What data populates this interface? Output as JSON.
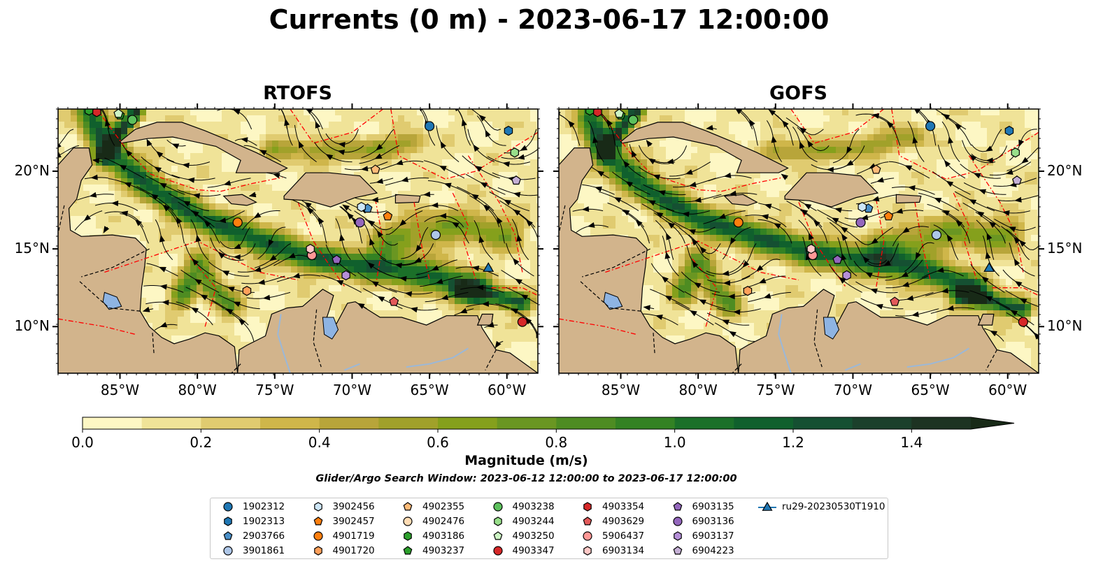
{
  "title": "Currents (0 m) - 2023-06-17 12:00:00",
  "panels": [
    {
      "title": "RTOFS"
    },
    {
      "title": "GOFS"
    }
  ],
  "axes": {
    "lon_ticks": [
      "85°W",
      "80°W",
      "75°W",
      "70°W",
      "65°W",
      "60°W"
    ],
    "lon_values": [
      -85,
      -80,
      -75,
      -70,
      -65,
      -60
    ],
    "lat_ticks": [
      "20°N",
      "15°N",
      "10°N"
    ],
    "lat_values": [
      20,
      15,
      10
    ],
    "lon_range": [
      -89,
      -58
    ],
    "lat_range": [
      7,
      24
    ]
  },
  "colorbar": {
    "label": "Magnitude (m/s)",
    "ticks": [
      "0.0",
      "0.2",
      "0.4",
      "0.6",
      "0.8",
      "1.0",
      "1.2",
      "1.4"
    ],
    "tick_values": [
      0,
      0.2,
      0.4,
      0.6,
      0.8,
      1.0,
      1.2,
      1.4
    ],
    "range": [
      0,
      1.5
    ],
    "extend": "max",
    "colors": [
      "#fdf7c4",
      "#f0e398",
      "#e0cb70",
      "#cfb64a",
      "#b8a53a",
      "#a1a12a",
      "#85a01c",
      "#6a9622",
      "#4e8c22",
      "#338223",
      "#1b7029",
      "#10602d",
      "#155032",
      "#1b402b",
      "#1d3322",
      "#182a17"
    ]
  },
  "search_window": "Glider/Argo Search Window: 2023-06-12 12:00:00 to 2023-06-17 12:00:00",
  "colors": {
    "land": "#d2b48c",
    "lakes": "#8eb4e3",
    "eez_lines": "#ff0000",
    "streamlines": "#000000"
  },
  "legend": [
    {
      "label": "1902312",
      "marker": "circle",
      "color": "#1f77b4"
    },
    {
      "label": "1902313",
      "marker": "hexagon",
      "color": "#1f77b4"
    },
    {
      "label": "2903766",
      "marker": "pentagon",
      "color": "#4a8fc8"
    },
    {
      "label": "3901861",
      "marker": "circle",
      "color": "#aec7e8"
    },
    {
      "label": "3902456",
      "marker": "hexagon",
      "color": "#cde6f7"
    },
    {
      "label": "3902457",
      "marker": "pentagon",
      "color": "#ff7f0e"
    },
    {
      "label": "4901719",
      "marker": "circle",
      "color": "#ff7f0e"
    },
    {
      "label": "4901720",
      "marker": "hexagon",
      "color": "#ffa05a"
    },
    {
      "label": "4902355",
      "marker": "pentagon",
      "color": "#ffbb78"
    },
    {
      "label": "4902476",
      "marker": "circle",
      "color": "#ffdcb4"
    },
    {
      "label": "4903186",
      "marker": "hexagon",
      "color": "#2ca02c"
    },
    {
      "label": "4903237",
      "marker": "pentagon",
      "color": "#2ca02c"
    },
    {
      "label": "4903238",
      "marker": "circle",
      "color": "#5cc05c"
    },
    {
      "label": "4903244",
      "marker": "hexagon",
      "color": "#98df8a"
    },
    {
      "label": "4903250",
      "marker": "pentagon",
      "color": "#cdf5c4"
    },
    {
      "label": "4903347",
      "marker": "circle",
      "color": "#d62728"
    },
    {
      "label": "4903354",
      "marker": "hexagon",
      "color": "#d62728"
    },
    {
      "label": "4903629",
      "marker": "pentagon",
      "color": "#e35a5a"
    },
    {
      "label": "5906437",
      "marker": "circle",
      "color": "#ff9896"
    },
    {
      "label": "6903134",
      "marker": "hexagon",
      "color": "#ffc8c6"
    },
    {
      "label": "6903135",
      "marker": "pentagon",
      "color": "#9467bd"
    },
    {
      "label": "6903136",
      "marker": "circle",
      "color": "#9467bd"
    },
    {
      "label": "6903137",
      "marker": "hexagon",
      "color": "#b58fd8"
    },
    {
      "label": "6904223",
      "marker": "pentagon",
      "color": "#c5b0d5"
    },
    {
      "label": "ru29-20230530T1910",
      "marker": "triangle-line",
      "color": "#1f77b4"
    }
  ],
  "floats": [
    {
      "id": "1902312",
      "lon": -65.0,
      "lat": 22.9
    },
    {
      "id": "1902313",
      "lon": -59.9,
      "lat": 22.6
    },
    {
      "id": "2903766",
      "lon": -69.0,
      "lat": 17.6
    },
    {
      "id": "3901861",
      "lon": -64.6,
      "lat": 15.9
    },
    {
      "id": "3902456",
      "lon": -69.4,
      "lat": 17.7
    },
    {
      "id": "3902457",
      "lon": -67.7,
      "lat": 17.1
    },
    {
      "id": "4901719",
      "lon": -77.4,
      "lat": 16.7
    },
    {
      "id": "4901720",
      "lon": -76.8,
      "lat": 12.3
    },
    {
      "id": "4902355",
      "lon": -68.5,
      "lat": 20.1
    },
    {
      "id": "4902476",
      "lon": -72.6,
      "lat": 14.6
    },
    {
      "id": "4903186",
      "lon": -87.0,
      "lat": 23.9
    },
    {
      "id": "4903237",
      "lon": -85.0,
      "lat": 23.6
    },
    {
      "id": "4903238",
      "lon": -84.2,
      "lat": 23.3
    },
    {
      "id": "4903244",
      "lon": -59.5,
      "lat": 21.2
    },
    {
      "id": "4903250",
      "lon": -85.1,
      "lat": 23.7
    },
    {
      "id": "4903347",
      "lon": -59.0,
      "lat": 10.3
    },
    {
      "id": "4903354",
      "lon": -86.5,
      "lat": 23.8
    },
    {
      "id": "4903629",
      "lon": -67.3,
      "lat": 11.6
    },
    {
      "id": "5906437",
      "lon": -72.6,
      "lat": 14.6
    },
    {
      "id": "6903134",
      "lon": -72.7,
      "lat": 15.0
    },
    {
      "id": "6903135",
      "lon": -71.0,
      "lat": 14.3
    },
    {
      "id": "6903136",
      "lon": -69.5,
      "lat": 16.7
    },
    {
      "id": "6903137",
      "lon": -70.4,
      "lat": 13.3
    },
    {
      "id": "6904223",
      "lon": -59.4,
      "lat": 19.4
    },
    {
      "id": "ru29-20230530T1910",
      "lon": -61.2,
      "lat": 13.8,
      "marker": "triangle"
    }
  ]
}
